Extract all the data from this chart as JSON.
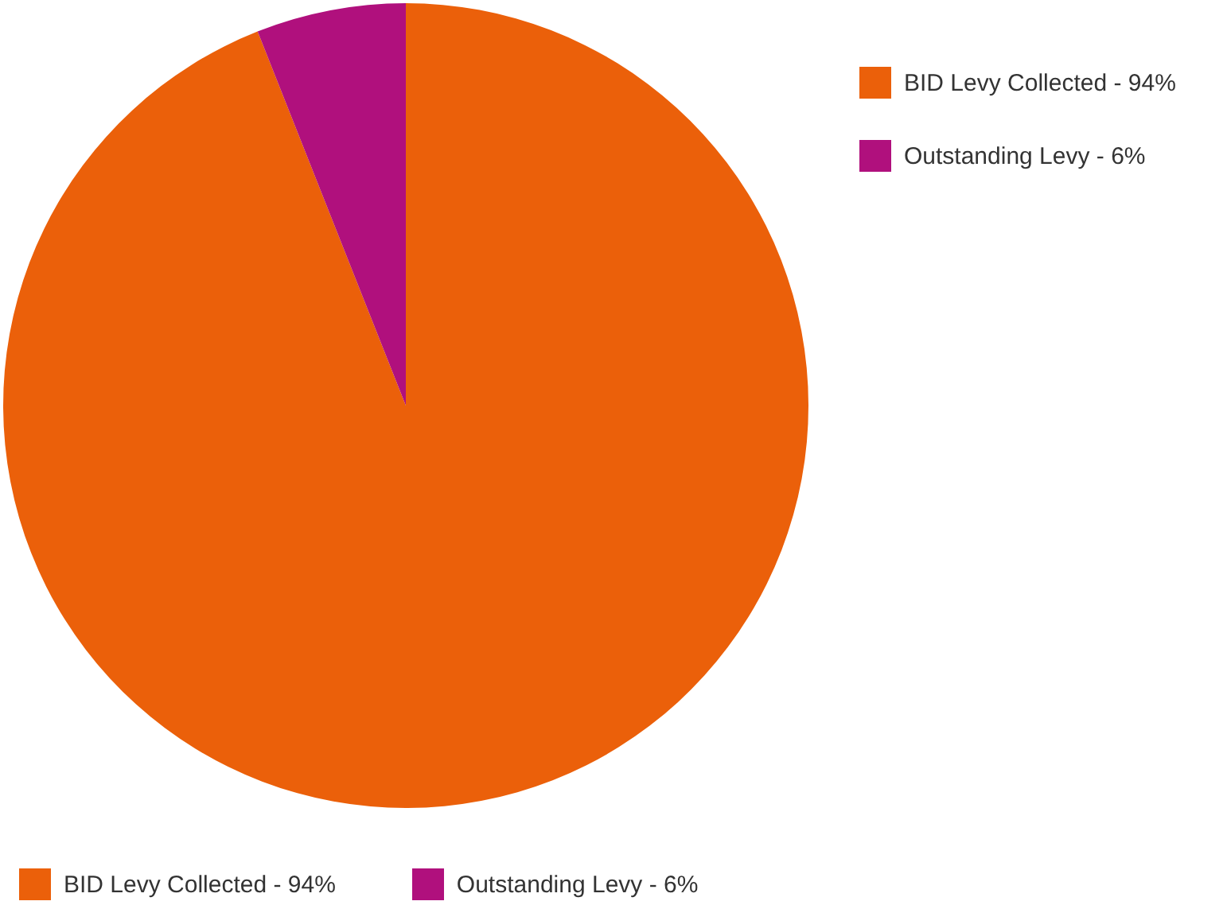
{
  "chart_data": {
    "type": "pie",
    "categories": [
      "BID Levy Collected - 94%",
      "Outstanding Levy - 6%"
    ],
    "values": [
      94,
      6
    ],
    "colors": [
      "#eb600a",
      "#b0107d"
    ],
    "legend": "bottom"
  }
}
